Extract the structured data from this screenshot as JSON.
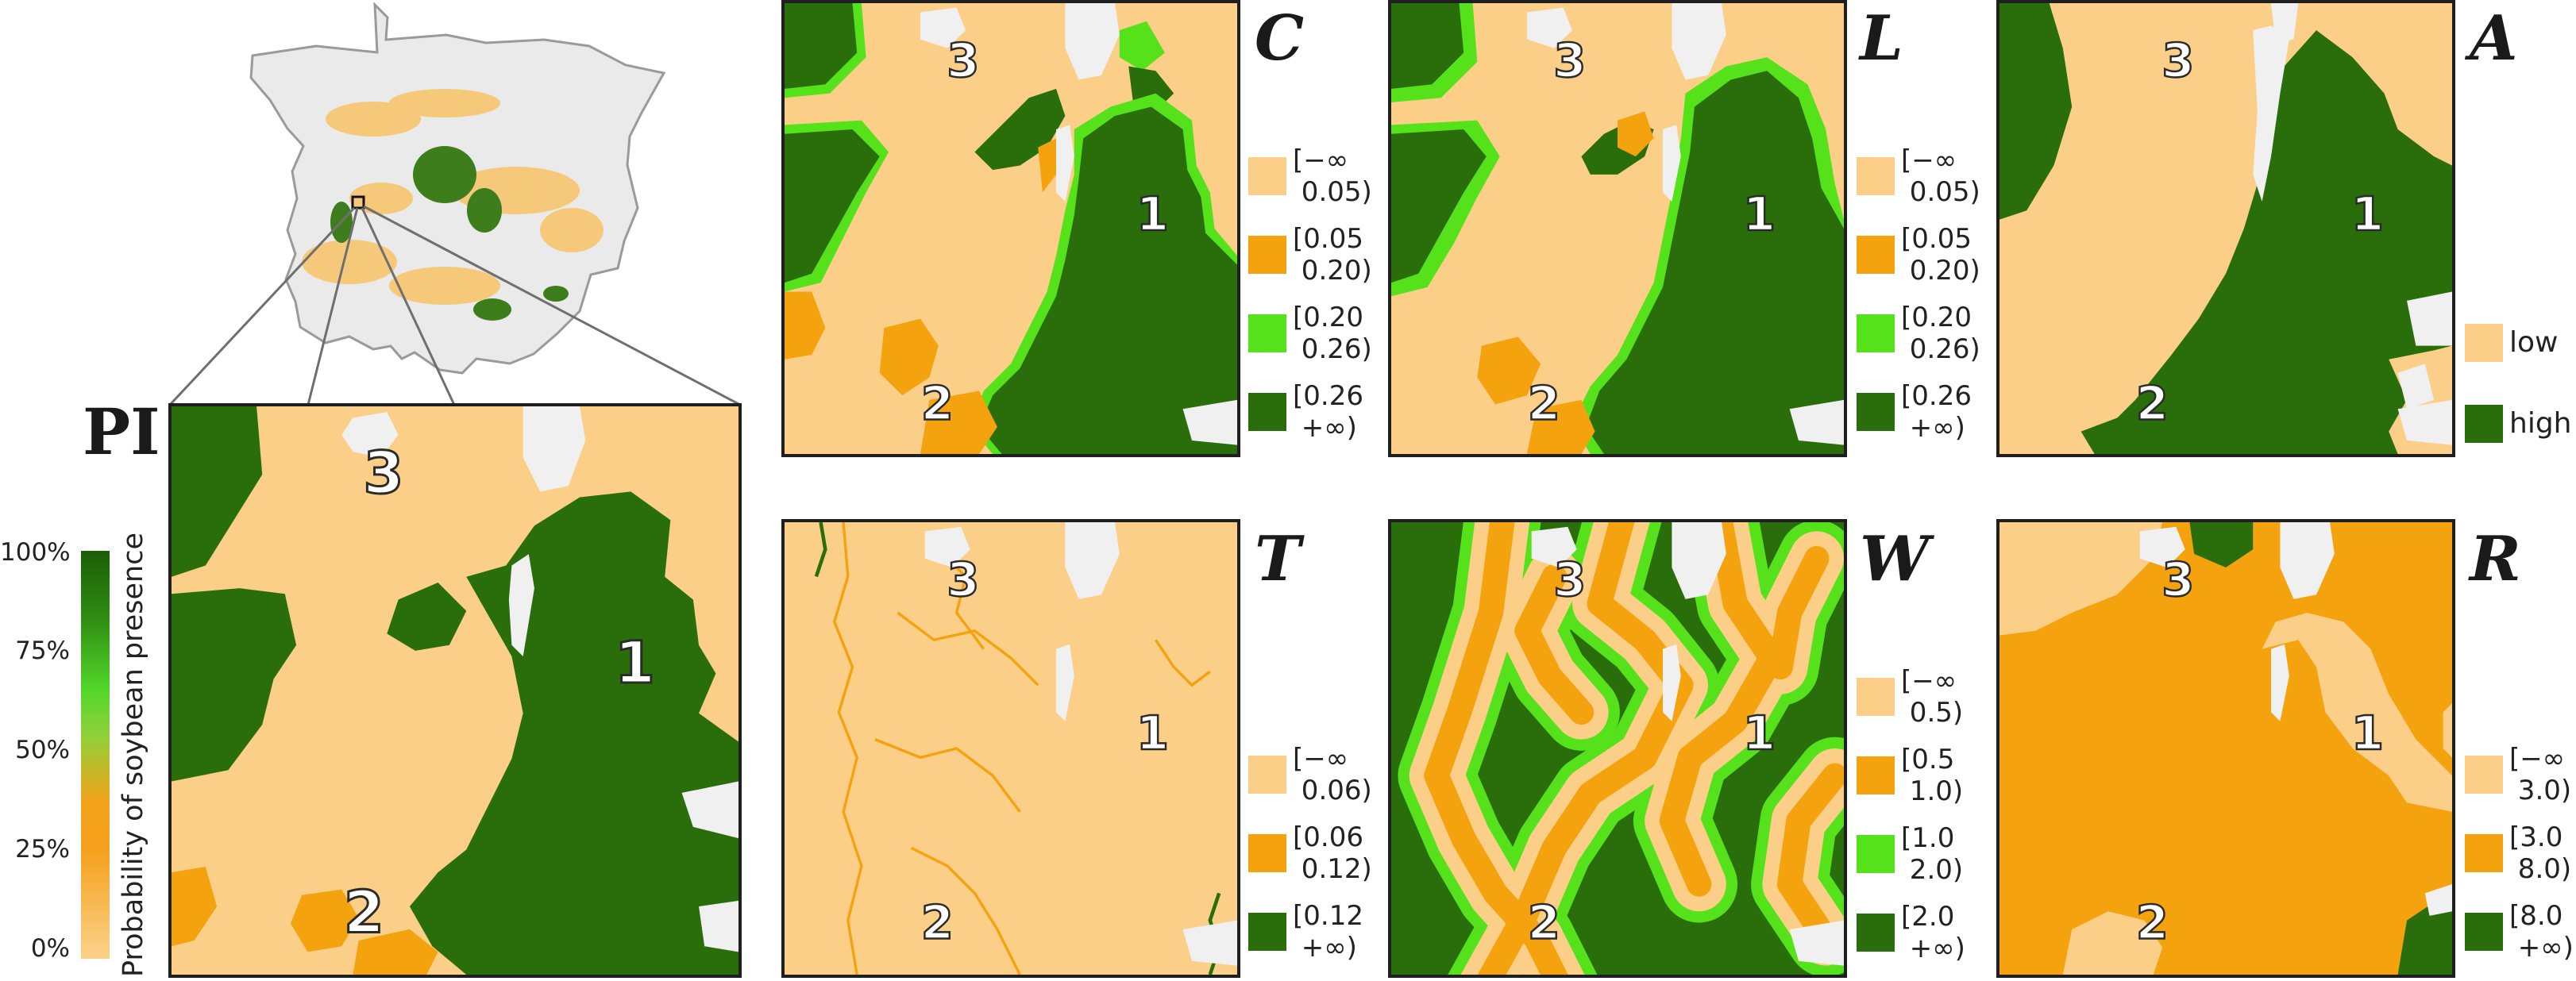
{
  "figure": {
    "overview_label": "PI",
    "colorbar": {
      "title": "Probability of soybean presence",
      "ticks": [
        "100%",
        "75%",
        "50%",
        "25%",
        "0%"
      ]
    },
    "region_labels": [
      "1",
      "2",
      "3"
    ],
    "panels": [
      {
        "id": "C",
        "label": "C",
        "legend": [
          "[−∞\n 0.05)",
          "[0.05\n 0.20)",
          "[0.20\n 0.26)",
          "[0.26\n +∞)"
        ]
      },
      {
        "id": "L",
        "label": "L",
        "legend": [
          "[−∞\n 0.05)",
          "[0.05\n 0.20)",
          "[0.20\n 0.26)",
          "[0.26\n +∞)"
        ]
      },
      {
        "id": "A",
        "label": "A",
        "legend": [
          "low",
          "high"
        ]
      },
      {
        "id": "T",
        "label": "T",
        "legend": [
          "[−∞\n 0.06)",
          "[0.06\n 0.12)",
          "[0.12\n +∞)"
        ]
      },
      {
        "id": "W",
        "label": "W",
        "legend": [
          "[−∞\n 0.5)",
          "[0.5\n 1.0)",
          "[1.0\n 2.0)",
          "[2.0\n +∞)"
        ]
      },
      {
        "id": "R",
        "label": "R",
        "legend": [
          "[−∞\n 3.0)",
          "[3.0\n 8.0)",
          "[8.0\n +∞)"
        ]
      }
    ],
    "colors": {
      "low": "#fbcf88",
      "mid": "#f5a20f",
      "bright": "#55e21a",
      "high": "#2a6e0c",
      "cloud": "#f0f0f0",
      "frame": "#1f1f1f"
    }
  }
}
